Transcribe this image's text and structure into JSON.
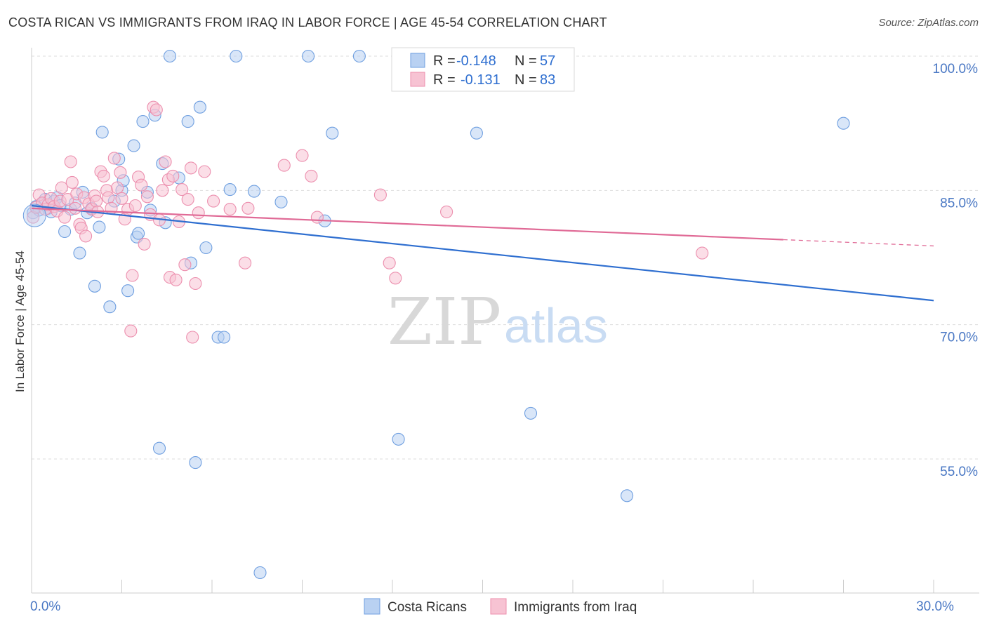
{
  "title": "COSTA RICAN VS IMMIGRANTS FROM IRAQ IN LABOR FORCE | AGE 45-54 CORRELATION CHART",
  "source": "Source: ZipAtlas.com",
  "watermark": {
    "part1": "ZIP",
    "part2": "atlas"
  },
  "colors": {
    "blue_fill": "#b9d1f2",
    "blue_stroke": "#6f9fe0",
    "blue_line": "#2f6fd0",
    "pink_fill": "#f7c3d3",
    "pink_stroke": "#ec8fae",
    "pink_line": "#e06a96",
    "grid": "#dddddd",
    "tick_label": "#4a78c4"
  },
  "legend": {
    "rows": [
      {
        "r_label": "R =",
        "r_value": "-0.148",
        "n_label": "N =",
        "n_value": "57"
      },
      {
        "r_label": "R =",
        "r_value": "-0.131",
        "n_label": "N =",
        "n_value": "83"
      }
    ]
  },
  "chart_data": {
    "type": "scatter",
    "xlabel": "",
    "ylabel": "In Labor Force | Age 45-54",
    "xlim": [
      0,
      30
    ],
    "ylim": [
      40,
      102
    ],
    "x_tick_labels": [
      {
        "value": 0,
        "label": "0.0%"
      },
      {
        "value": 30,
        "label": "30.0%"
      }
    ],
    "y_tick_labels": [
      {
        "value": 100,
        "label": "100.0%"
      },
      {
        "value": 85,
        "label": "85.0%"
      },
      {
        "value": 70,
        "label": "70.0%"
      },
      {
        "value": 55,
        "label": "55.0%"
      }
    ],
    "grid": true,
    "series": [
      {
        "name": "Costa Ricans",
        "color": "blue",
        "r": -0.148,
        "n": 57,
        "trend": {
          "x0": 0,
          "y0": 83.3,
          "x1": 30,
          "y1": 72.7,
          "solid_until": 30
        },
        "points": [
          [
            0.05,
            82.5
          ],
          [
            0.15,
            83.2
          ],
          [
            0.25,
            82.8
          ],
          [
            0.35,
            83.5
          ],
          [
            0.45,
            84.0
          ],
          [
            0.55,
            83.0
          ],
          [
            0.65,
            82.6
          ],
          [
            0.75,
            83.8
          ],
          [
            0.85,
            84.2
          ],
          [
            0.95,
            83.3
          ],
          [
            1.1,
            80.4
          ],
          [
            1.3,
            82.9
          ],
          [
            1.45,
            83.6
          ],
          [
            1.6,
            78.0
          ],
          [
            1.7,
            84.8
          ],
          [
            1.85,
            82.5
          ],
          [
            2.0,
            83.0
          ],
          [
            2.1,
            74.3
          ],
          [
            2.25,
            80.9
          ],
          [
            2.35,
            91.5
          ],
          [
            2.6,
            72.0
          ],
          [
            2.75,
            83.8
          ],
          [
            2.9,
            88.5
          ],
          [
            3.0,
            85.0
          ],
          [
            3.05,
            86.1
          ],
          [
            3.2,
            73.8
          ],
          [
            3.4,
            90.0
          ],
          [
            3.5,
            79.8
          ],
          [
            3.55,
            80.2
          ],
          [
            3.7,
            92.7
          ],
          [
            3.85,
            84.8
          ],
          [
            3.95,
            82.8
          ],
          [
            4.1,
            93.4
          ],
          [
            4.25,
            56.2
          ],
          [
            4.35,
            88.0
          ],
          [
            4.45,
            81.4
          ],
          [
            4.6,
            100.0
          ],
          [
            4.9,
            86.4
          ],
          [
            5.2,
            92.7
          ],
          [
            5.3,
            76.9
          ],
          [
            5.45,
            54.6
          ],
          [
            5.6,
            94.3
          ],
          [
            5.8,
            78.6
          ],
          [
            6.2,
            68.6
          ],
          [
            6.4,
            68.6
          ],
          [
            6.6,
            85.1
          ],
          [
            6.8,
            100.0
          ],
          [
            7.4,
            84.9
          ],
          [
            7.6,
            42.3
          ],
          [
            8.3,
            83.7
          ],
          [
            9.2,
            100.0
          ],
          [
            9.75,
            81.6
          ],
          [
            10.0,
            91.4
          ],
          [
            10.9,
            100.0
          ],
          [
            12.2,
            57.2
          ],
          [
            14.8,
            91.4
          ],
          [
            16.6,
            60.1
          ],
          [
            19.8,
            50.9
          ],
          [
            27.0,
            92.5
          ]
        ]
      },
      {
        "name": "Immigrants from Iraq",
        "color": "pink",
        "r": -0.131,
        "n": 83,
        "trend": {
          "x0": 0,
          "y0": 83.0,
          "x1": 30,
          "y1": 78.8,
          "solid_until": 25.0
        },
        "points": [
          [
            0.05,
            82.0
          ],
          [
            0.15,
            83.1
          ],
          [
            0.25,
            84.5
          ],
          [
            0.35,
            83.6
          ],
          [
            0.45,
            82.9
          ],
          [
            0.55,
            83.4
          ],
          [
            0.65,
            84.1
          ],
          [
            0.75,
            83.2
          ],
          [
            0.85,
            82.7
          ],
          [
            0.95,
            83.8
          ],
          [
            1.0,
            85.3
          ],
          [
            1.1,
            82.0
          ],
          [
            1.2,
            84.0
          ],
          [
            1.3,
            88.2
          ],
          [
            1.35,
            85.9
          ],
          [
            1.45,
            83.0
          ],
          [
            1.5,
            84.6
          ],
          [
            1.6,
            81.2
          ],
          [
            1.65,
            80.8
          ],
          [
            1.75,
            84.2
          ],
          [
            1.8,
            79.9
          ],
          [
            1.9,
            83.5
          ],
          [
            2.0,
            82.9
          ],
          [
            2.1,
            84.4
          ],
          [
            2.15,
            83.8
          ],
          [
            2.2,
            82.6
          ],
          [
            2.3,
            87.1
          ],
          [
            2.4,
            86.6
          ],
          [
            2.5,
            85.0
          ],
          [
            2.55,
            84.2
          ],
          [
            2.65,
            83.0
          ],
          [
            2.75,
            88.6
          ],
          [
            2.85,
            85.3
          ],
          [
            2.95,
            87.0
          ],
          [
            3.0,
            84.1
          ],
          [
            3.1,
            81.8
          ],
          [
            3.2,
            82.9
          ],
          [
            3.3,
            69.3
          ],
          [
            3.35,
            75.5
          ],
          [
            3.45,
            83.3
          ],
          [
            3.55,
            86.5
          ],
          [
            3.65,
            85.6
          ],
          [
            3.75,
            79.0
          ],
          [
            3.85,
            84.3
          ],
          [
            3.95,
            82.3
          ],
          [
            4.05,
            94.3
          ],
          [
            4.15,
            94.0
          ],
          [
            4.25,
            81.7
          ],
          [
            4.35,
            85.0
          ],
          [
            4.45,
            88.2
          ],
          [
            4.55,
            86.2
          ],
          [
            4.6,
            75.3
          ],
          [
            4.7,
            86.6
          ],
          [
            4.8,
            75.0
          ],
          [
            4.9,
            81.5
          ],
          [
            5.0,
            85.1
          ],
          [
            5.1,
            76.7
          ],
          [
            5.2,
            84.0
          ],
          [
            5.3,
            87.5
          ],
          [
            5.35,
            68.6
          ],
          [
            5.45,
            74.6
          ],
          [
            5.55,
            82.5
          ],
          [
            5.75,
            87.1
          ],
          [
            6.05,
            83.8
          ],
          [
            6.6,
            82.9
          ],
          [
            7.1,
            76.9
          ],
          [
            7.2,
            83.0
          ],
          [
            8.4,
            87.8
          ],
          [
            9.0,
            88.9
          ],
          [
            9.3,
            86.6
          ],
          [
            9.5,
            82.0
          ],
          [
            11.6,
            84.5
          ],
          [
            11.9,
            76.9
          ],
          [
            12.1,
            75.2
          ],
          [
            13.8,
            82.6
          ],
          [
            22.3,
            78.0
          ]
        ]
      }
    ]
  },
  "bottom_legend": {
    "blue_label": "Costa Ricans",
    "pink_label": "Immigrants from Iraq"
  }
}
